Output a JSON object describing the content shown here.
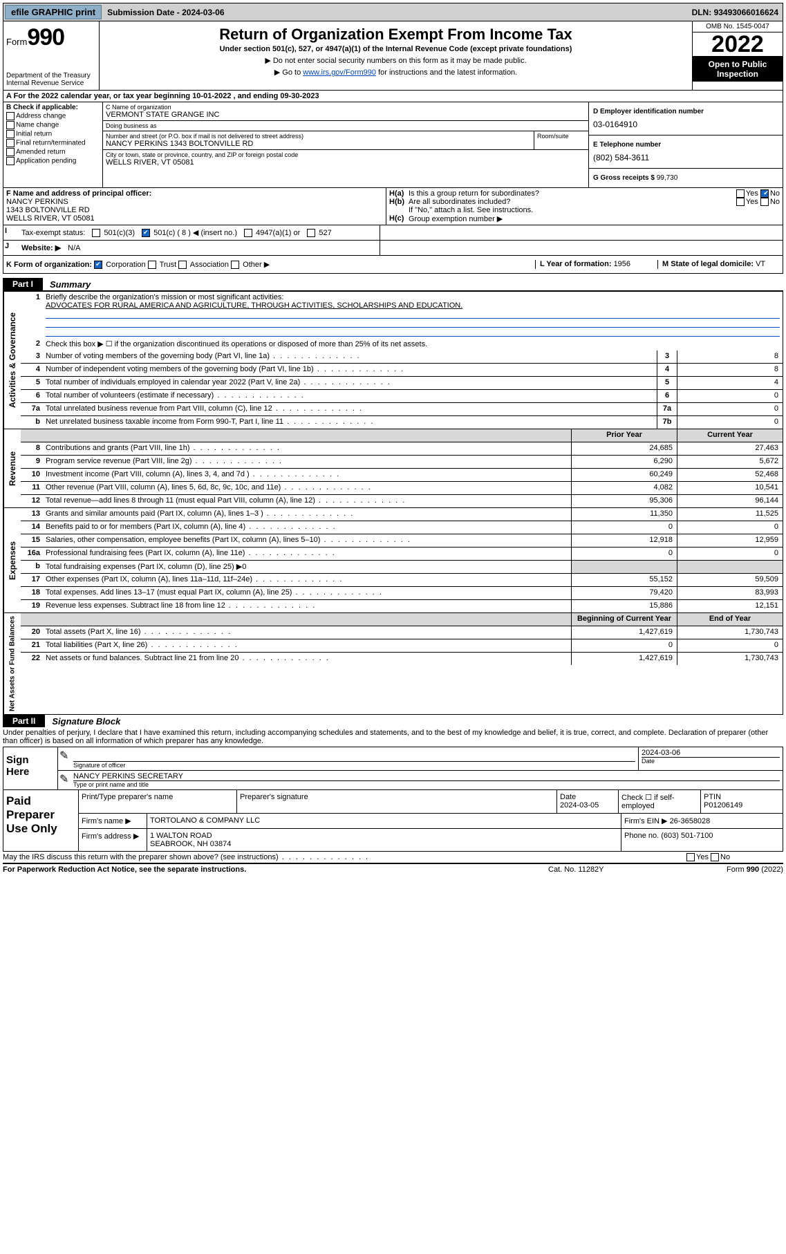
{
  "topbar": {
    "efile": "efile GRAPHIC print",
    "sub_label": "Submission Date - ",
    "sub_date": "2024-03-06",
    "dln_label": "DLN: ",
    "dln": "93493066016624"
  },
  "header": {
    "form_prefix": "Form",
    "form_num": "990",
    "dept": "Department of the Treasury",
    "irs": "Internal Revenue Service",
    "title": "Return of Organization Exempt From Income Tax",
    "subtitle": "Under section 501(c), 527, or 4947(a)(1) of the Internal Revenue Code (except private foundations)",
    "instr1": "▶ Do not enter social security numbers on this form as it may be made public.",
    "instr2_pre": "▶ Go to ",
    "instr2_link": "www.irs.gov/Form990",
    "instr2_post": " for instructions and the latest information.",
    "omb": "OMB No. 1545-0047",
    "year": "2022",
    "open": "Open to Public Inspection"
  },
  "lineA": "A For the 2022 calendar year, or tax year beginning 10-01-2022    , and ending 09-30-2023",
  "colB": {
    "title": "B Check if applicable:",
    "opts": [
      "Address change",
      "Name change",
      "Initial return",
      "Final return/terminated",
      "Amended return",
      "Application pending"
    ]
  },
  "colC": {
    "name_lbl": "C Name of organization",
    "name": "VERMONT STATE GRANGE INC",
    "dba_lbl": "Doing business as",
    "dba": "",
    "addr_lbl": "Number and street (or P.O. box if mail is not delivered to street address)",
    "room_lbl": "Room/suite",
    "addr": "NANCY PERKINS 1343 BOLTONVILLE RD",
    "city_lbl": "City or town, state or province, country, and ZIP or foreign postal code",
    "city": "WELLS RIVER, VT  05081"
  },
  "colD": {
    "d_lbl": "D Employer identification number",
    "d_val": "03-0164910",
    "e_lbl": "E Telephone number",
    "e_val": "(802) 584-3611",
    "g_lbl": "G Gross receipts $ ",
    "g_val": "99,730"
  },
  "F": {
    "lbl": "F Name and address of principal officer:",
    "name": "NANCY PERKINS",
    "addr1": "1343 BOLTONVILLE RD",
    "addr2": "WELLS RIVER, VT  05081"
  },
  "H": {
    "a": "Is this a group return for subordinates?",
    "b": "Are all subordinates included?",
    "b_note": "If \"No,\" attach a list. See instructions.",
    "c": "Group exemption number ▶"
  },
  "I": {
    "lbl": "Tax-exempt status:",
    "opts": [
      "501(c)(3)",
      "501(c) ( 8 ) ◀ (insert no.)",
      "4947(a)(1) or",
      "527"
    ]
  },
  "J": {
    "lbl": "Website: ▶",
    "val": "N/A"
  },
  "K": {
    "lbl": "K Form of organization:",
    "opts": [
      "Corporation",
      "Trust",
      "Association",
      "Other ▶"
    ]
  },
  "L": {
    "lbl": "L Year of formation: ",
    "val": "1956"
  },
  "M": {
    "lbl": "M State of legal domicile: ",
    "val": "VT"
  },
  "part1": {
    "tab": "Part I",
    "title": "Summary"
  },
  "summary": {
    "gov_label": "Activities & Governance",
    "rev_label": "Revenue",
    "exp_label": "Expenses",
    "net_label": "Net Assets or Fund Balances",
    "line1_lbl": "Briefly describe the organization's mission or most significant activities:",
    "line1_val": "ADVOCATES FOR RURAL AMERICA AND AGRICULTURE, THROUGH ACTIVITIES, SCHOLARSHIPS AND EDUCATION.",
    "line2": "Check this box ▶ ☐ if the organization discontinued its operations or disposed of more than 25% of its net assets.",
    "rows_gov": [
      {
        "n": "3",
        "d": "Number of voting members of the governing body (Part VI, line 1a)",
        "box": "3",
        "v": "8"
      },
      {
        "n": "4",
        "d": "Number of independent voting members of the governing body (Part VI, line 1b)",
        "box": "4",
        "v": "8"
      },
      {
        "n": "5",
        "d": "Total number of individuals employed in calendar year 2022 (Part V, line 2a)",
        "box": "5",
        "v": "4"
      },
      {
        "n": "6",
        "d": "Total number of volunteers (estimate if necessary)",
        "box": "6",
        "v": "0"
      },
      {
        "n": "7a",
        "d": "Total unrelated business revenue from Part VIII, column (C), line 12",
        "box": "7a",
        "v": "0"
      },
      {
        "n": "b",
        "d": "Net unrelated business taxable income from Form 990-T, Part I, line 11",
        "box": "7b",
        "v": "0"
      }
    ],
    "col_prior": "Prior Year",
    "col_curr": "Current Year",
    "rows_rev": [
      {
        "n": "8",
        "d": "Contributions and grants (Part VIII, line 1h)",
        "p": "24,685",
        "c": "27,463"
      },
      {
        "n": "9",
        "d": "Program service revenue (Part VIII, line 2g)",
        "p": "6,290",
        "c": "5,672"
      },
      {
        "n": "10",
        "d": "Investment income (Part VIII, column (A), lines 3, 4, and 7d )",
        "p": "60,249",
        "c": "52,468"
      },
      {
        "n": "11",
        "d": "Other revenue (Part VIII, column (A), lines 5, 6d, 8c, 9c, 10c, and 11e)",
        "p": "4,082",
        "c": "10,541"
      },
      {
        "n": "12",
        "d": "Total revenue—add lines 8 through 11 (must equal Part VIII, column (A), line 12)",
        "p": "95,306",
        "c": "96,144"
      }
    ],
    "rows_exp": [
      {
        "n": "13",
        "d": "Grants and similar amounts paid (Part IX, column (A), lines 1–3 )",
        "p": "11,350",
        "c": "11,525"
      },
      {
        "n": "14",
        "d": "Benefits paid to or for members (Part IX, column (A), line 4)",
        "p": "0",
        "c": "0"
      },
      {
        "n": "15",
        "d": "Salaries, other compensation, employee benefits (Part IX, column (A), lines 5–10)",
        "p": "12,918",
        "c": "12,959"
      },
      {
        "n": "16a",
        "d": "Professional fundraising fees (Part IX, column (A), line 11e)",
        "p": "0",
        "c": "0"
      },
      {
        "n": "b",
        "d": "Total fundraising expenses (Part IX, column (D), line 25) ▶0",
        "p": "",
        "c": "",
        "shaded": true
      },
      {
        "n": "17",
        "d": "Other expenses (Part IX, column (A), lines 11a–11d, 11f–24e)",
        "p": "55,152",
        "c": "59,509"
      },
      {
        "n": "18",
        "d": "Total expenses. Add lines 13–17 (must equal Part IX, column (A), line 25)",
        "p": "79,420",
        "c": "83,993"
      },
      {
        "n": "19",
        "d": "Revenue less expenses. Subtract line 18 from line 12",
        "p": "15,886",
        "c": "12,151"
      }
    ],
    "col_beg": "Beginning of Current Year",
    "col_end": "End of Year",
    "rows_net": [
      {
        "n": "20",
        "d": "Total assets (Part X, line 16)",
        "p": "1,427,619",
        "c": "1,730,743"
      },
      {
        "n": "21",
        "d": "Total liabilities (Part X, line 26)",
        "p": "0",
        "c": "0"
      },
      {
        "n": "22",
        "d": "Net assets or fund balances. Subtract line 21 from line 20",
        "p": "1,427,619",
        "c": "1,730,743"
      }
    ]
  },
  "part2": {
    "tab": "Part II",
    "title": "Signature Block",
    "decl": "Under penalties of perjury, I declare that I have examined this return, including accompanying schedules and statements, and to the best of my knowledge and belief, it is true, correct, and complete. Declaration of preparer (other than officer) is based on all information of which preparer has any knowledge."
  },
  "sign": {
    "side": "Sign Here",
    "sig_lbl": "Signature of officer",
    "date": "2024-03-06",
    "date_lbl": "Date",
    "name": "NANCY PERKINS SECRETARY",
    "name_lbl": "Type or print name and title"
  },
  "prep": {
    "side": "Paid Preparer Use Only",
    "h1": "Print/Type preparer's name",
    "h2": "Preparer's signature",
    "h3": "Date",
    "h3v": "2024-03-05",
    "h4": "Check ☐ if self-employed",
    "h5": "PTIN",
    "h5v": "P01206149",
    "firm_lbl": "Firm's name    ▶",
    "firm": "TORTOLANO & COMPANY LLC",
    "ein_lbl": "Firm's EIN ▶",
    "ein": "26-3658028",
    "addr_lbl": "Firm's address ▶",
    "addr1": "1 WALTON ROAD",
    "addr2": "SEABROOK, NH  03874",
    "phone_lbl": "Phone no. ",
    "phone": "(603) 501-7100"
  },
  "discuss": "May the IRS discuss this return with the preparer shown above? (see instructions)",
  "footer": {
    "l": "For Paperwork Reduction Act Notice, see the separate instructions.",
    "m": "Cat. No. 11282Y",
    "r": "Form 990 (2022)"
  }
}
